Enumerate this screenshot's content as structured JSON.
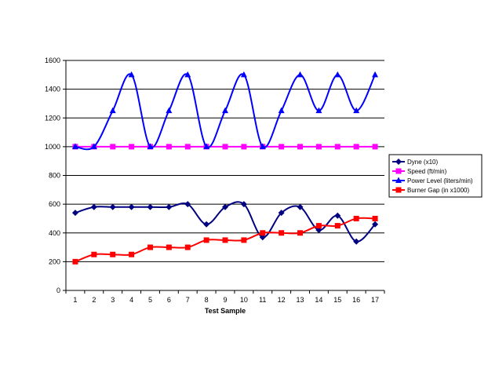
{
  "chart_data": {
    "type": "line",
    "title": "",
    "xlabel": "Test Sample",
    "ylabel": "",
    "x": [
      1,
      2,
      3,
      4,
      5,
      6,
      7,
      8,
      9,
      10,
      11,
      12,
      13,
      14,
      15,
      16,
      17
    ],
    "ylim": [
      0,
      1600
    ],
    "yticks": [
      0,
      200,
      400,
      600,
      800,
      1000,
      1200,
      1400,
      1600
    ],
    "grid": "horizontal",
    "legend_position": "right",
    "smooth": true,
    "series": [
      {
        "name": "Dyne (x10)",
        "color": "#000080",
        "marker": "diamond",
        "values": [
          540,
          580,
          580,
          580,
          580,
          580,
          600,
          460,
          580,
          600,
          370,
          540,
          580,
          420,
          520,
          340,
          460
        ]
      },
      {
        "name": "Speed (ft/min)",
        "color": "#FF00FF",
        "marker": "square",
        "values": [
          1000,
          1000,
          1000,
          1000,
          1000,
          1000,
          1000,
          1000,
          1000,
          1000,
          1000,
          1000,
          1000,
          1000,
          1000,
          1000,
          1000
        ]
      },
      {
        "name": "Power Level (liters/min)",
        "color": "#0000FF",
        "marker": "triangle",
        "values": [
          1000,
          1000,
          1250,
          1500,
          1000,
          1250,
          1500,
          1000,
          1250,
          1500,
          1000,
          1250,
          1500,
          1250,
          1500,
          1250,
          1500
        ]
      },
      {
        "name": "Burner Gap (in x1000)",
        "color": "#FF0000",
        "marker": "square",
        "values": [
          200,
          250,
          250,
          250,
          300,
          300,
          300,
          350,
          350,
          350,
          400,
          400,
          400,
          450,
          450,
          500,
          500
        ]
      }
    ]
  }
}
